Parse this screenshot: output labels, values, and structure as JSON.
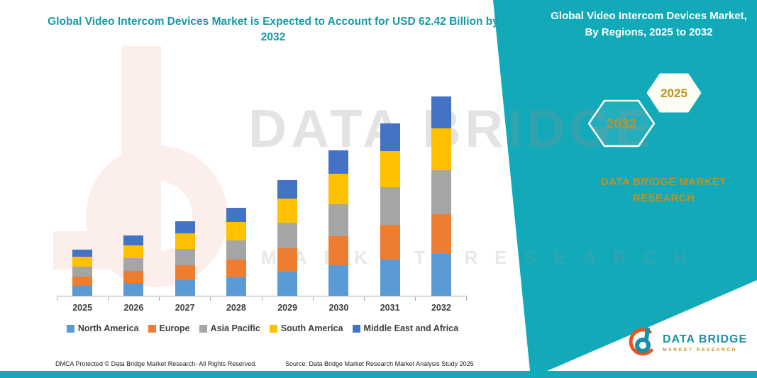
{
  "left_title": "Global Video Intercom Devices Market is Expected to Account for USD 62.42 Billion by 2032",
  "right_panel": {
    "title": "Global Video Intercom Devices Market, By Regions, 2025 to 2032",
    "hexagon_back_label": "2032",
    "hexagon_front_label": "2025",
    "brand_text": "DATA BRIDGE MARKET RESEARCH"
  },
  "watermark": {
    "line1": "DATA BRIDGE",
    "line2": "MARKET RESEARCH"
  },
  "footer": {
    "left": "DMCA Protected © Data Bridge Market Research-  All Rights Reserved.",
    "source": "Source: Data Bridge Market Research  Market Analysis Study 2025"
  },
  "logo": {
    "name": "DATA BRIDGE",
    "subtitle": "MARKET RESEARCH"
  },
  "colors": {
    "teal": "#12A9B8",
    "title": "#1799A9",
    "gold": "#BD9226",
    "orange": "#E8531F",
    "text_dark": "#3F3F3F"
  },
  "chart_data": {
    "type": "bar",
    "stacked": true,
    "title": "Global Video Intercom Devices Market, By Regions, 2025 to 2032",
    "categories": [
      "2025",
      "2026",
      "2027",
      "2028",
      "2029",
      "2030",
      "2031",
      "2032"
    ],
    "series": [
      {
        "name": "North America",
        "color": "#5B9BD5",
        "values": [
          3.1,
          3.9,
          4.9,
          5.8,
          7.6,
          9.5,
          11.3,
          13.1
        ]
      },
      {
        "name": "Europe",
        "color": "#ED7D31",
        "values": [
          2.9,
          3.8,
          4.6,
          5.5,
          7.3,
          9.1,
          10.8,
          12.5
        ]
      },
      {
        "name": "Asia Pacific",
        "color": "#A5A5A5",
        "values": [
          3.2,
          4.1,
          5.1,
          6.1,
          8.0,
          10.0,
          11.8,
          13.7
        ]
      },
      {
        "name": "South America",
        "color": "#FFC000",
        "values": [
          3.1,
          3.9,
          4.9,
          5.8,
          7.6,
          9.5,
          11.3,
          13.1
        ]
      },
      {
        "name": "Middle East and Africa",
        "color": "#4472C4",
        "values": [
          2.3,
          3.0,
          3.7,
          4.4,
          5.8,
          7.3,
          8.6,
          10.0
        ]
      }
    ],
    "totals_by_year": [
      14.6,
      18.8,
      23.2,
      27.7,
      36.3,
      45.4,
      53.8,
      62.42
    ],
    "units": "USD Billion",
    "xlabel": "",
    "ylabel": "",
    "ylim": [
      0,
      66
    ],
    "grid": false,
    "legend_position": "bottom"
  }
}
